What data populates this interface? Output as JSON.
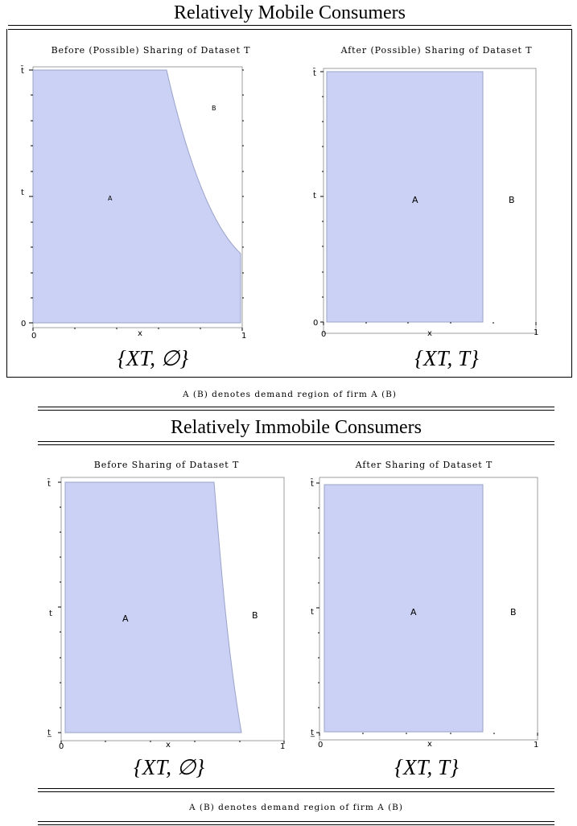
{
  "mobile": {
    "heading": "Relatively Mobile Consumers",
    "before_caption": "Before (Possible) Sharing of Dataset T",
    "after_caption": "After (Possible) Sharing of Dataset T",
    "before_label": "{XT, ∅}",
    "after_label": "{XT, T}",
    "note": "A (B) denotes demand region of firm A (B)"
  },
  "immobile": {
    "heading": "Relatively Immobile Consumers",
    "before_caption": "Before Sharing of Dataset T",
    "after_caption": "After Sharing of Dataset T",
    "before_label": "{XT, ∅}",
    "after_label": "{XT, T}",
    "note": "A (B) denotes demand region of firm A (B)"
  },
  "plot_text": {
    "x_axis_label": "x",
    "y_axis_label": "t",
    "x_tick_min": "0",
    "x_tick_max": "1",
    "y_tick_top": "t̄",
    "y_tick_zero": "0",
    "y_tick_bottom": "t̲",
    "region_a": "A",
    "region_b": "B"
  },
  "colors": {
    "region_a_fill": "#cbd1f4",
    "region_a_edge": "#9aa3c8"
  }
}
